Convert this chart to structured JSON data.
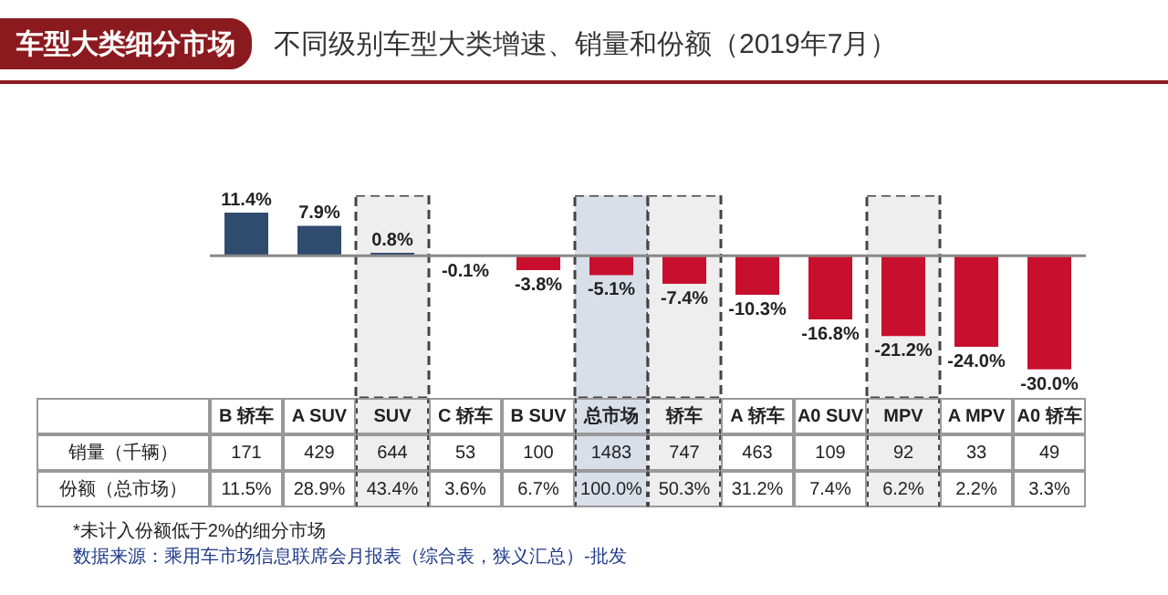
{
  "chart_data": {
    "type": "bar",
    "title": "车型大类细分市场",
    "subtitle": "不同级别车型大类增速、销量和份额（2019年7月）",
    "categories": [
      "B 轿车",
      "A SUV",
      "SUV",
      "C 轿车",
      "B SUV",
      "总市场",
      "轿车",
      "A 轿车",
      "A0 SUV",
      "MPV",
      "A MPV",
      "A0 轿车"
    ],
    "values": [
      11.4,
      7.9,
      0.8,
      -0.1,
      -3.8,
      -5.1,
      -7.4,
      -10.3,
      -16.8,
      -21.2,
      -24.0,
      -30.0
    ],
    "value_labels": [
      "11.4%",
      "7.9%",
      "0.8%",
      "-0.1%",
      "-3.8%",
      "-5.1%",
      "-7.4%",
      "-10.3%",
      "-16.8%",
      "-21.2%",
      "-24.0%",
      "-30.0%"
    ],
    "colors": [
      "#2f4b6e",
      "#2f4b6e",
      "#2f4b6e",
      "#c8102e",
      "#c8102e",
      "#c8102e",
      "#c8102e",
      "#c8102e",
      "#c8102e",
      "#c8102e",
      "#c8102e",
      "#c8102e"
    ],
    "bands": [
      {
        "axis": "x",
        "from": "SUV",
        "to": "SUV",
        "color": "#eeeeee"
      },
      {
        "axis": "x",
        "from": "总市场",
        "to": "总市场",
        "color": "#d9dfe9"
      },
      {
        "axis": "x",
        "from": "轿车",
        "to": "轿车",
        "color": "#eeeeee"
      },
      {
        "axis": "x",
        "from": "MPV",
        "to": "MPV",
        "color": "#eeeeee"
      }
    ],
    "annotations": [
      "销量（千辆）",
      "171",
      "429",
      "644",
      "53",
      "100",
      "1483",
      "747",
      "463",
      "109",
      "92",
      "33",
      "49",
      "份额（总市场）",
      "11.5%",
      "28.9%",
      "43.4%",
      "3.6%",
      "6.7%",
      "100.0%",
      "50.3%",
      "31.2%",
      "7.4%",
      "6.2%",
      "2.2%",
      "3.3%",
      "*未计入份额低于2%的细分市场",
      "数据来源：乘用车市场信息联席会月报表（综合表，狭义汇总）-批发"
    ]
  }
}
